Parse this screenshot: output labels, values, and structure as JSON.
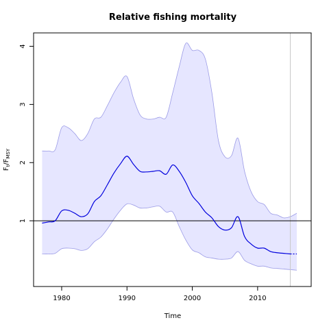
{
  "chart_data": {
    "type": "line",
    "title": "Relative fishing mortality",
    "xlabel": "Time",
    "ylabel": {
      "main": "F",
      "sub1": "t",
      "sep": "/F",
      "sub2": "MSY"
    },
    "xlim": [
      1975.7,
      2018.2
    ],
    "ylim": [
      -0.13,
      4.23
    ],
    "x_ticks": [
      1980,
      1990,
      2000,
      2010
    ],
    "y_ticks": [
      1,
      2,
      3,
      4
    ],
    "reference_line": {
      "y": 1,
      "color": "#000000"
    },
    "last_data_year": 2015,
    "colors": {
      "line": "#0000dd",
      "band_fill": "#e6e6ff",
      "band_stroke": "#9a9ae6",
      "vline": "#c8c8c8"
    },
    "series": [
      {
        "role": "estimate",
        "x": [
          1977,
          1978,
          1979,
          1980,
          1981,
          1982,
          1983,
          1984,
          1985,
          1986,
          1987,
          1988,
          1989,
          1990,
          1991,
          1992,
          1993,
          1994,
          1995,
          1996,
          1997,
          1998,
          1999,
          2000,
          2001,
          2002,
          2003,
          2004,
          2005,
          2006,
          2007,
          2008,
          2009,
          2010,
          2011,
          2012,
          2013,
          2014,
          2015
        ],
        "y": [
          0.96,
          0.98,
          1.0,
          1.17,
          1.18,
          1.13,
          1.07,
          1.12,
          1.33,
          1.43,
          1.62,
          1.82,
          1.98,
          2.11,
          1.97,
          1.85,
          1.84,
          1.85,
          1.86,
          1.8,
          1.96,
          1.85,
          1.66,
          1.43,
          1.3,
          1.15,
          1.05,
          0.9,
          0.84,
          0.88,
          1.07,
          0.73,
          0.6,
          0.53,
          0.53,
          0.47,
          0.45,
          0.44,
          0.43
        ]
      },
      {
        "role": "projection",
        "x": [
          2015,
          2016
        ],
        "y": [
          0.43,
          0.43
        ]
      },
      {
        "role": "upper",
        "x": [
          1977,
          1978,
          1979,
          1980,
          1981,
          1982,
          1983,
          1984,
          1985,
          1986,
          1987,
          1988,
          1989,
          1990,
          1991,
          1992,
          1993,
          1994,
          1995,
          1996,
          1997,
          1998,
          1999,
          2000,
          2001,
          2002,
          2003,
          2004,
          2005,
          2006,
          2007,
          2008,
          2009,
          2010,
          2011,
          2012,
          2013,
          2014,
          2015,
          2016
        ],
        "y": [
          2.2,
          2.2,
          2.22,
          2.6,
          2.6,
          2.5,
          2.38,
          2.5,
          2.75,
          2.78,
          2.98,
          3.2,
          3.38,
          3.48,
          3.1,
          2.82,
          2.75,
          2.75,
          2.78,
          2.78,
          3.2,
          3.65,
          4.05,
          3.93,
          3.93,
          3.78,
          3.2,
          2.38,
          2.1,
          2.12,
          2.42,
          1.85,
          1.5,
          1.33,
          1.28,
          1.13,
          1.1,
          1.05,
          1.07,
          1.13
        ]
      },
      {
        "role": "lower",
        "x": [
          1977,
          1978,
          1979,
          1980,
          1981,
          1982,
          1983,
          1984,
          1985,
          1986,
          1987,
          1988,
          1989,
          1990,
          1991,
          1992,
          1993,
          1994,
          1995,
          1996,
          1997,
          1998,
          1999,
          2000,
          2001,
          2002,
          2003,
          2004,
          2005,
          2006,
          2007,
          2008,
          2009,
          2010,
          2011,
          2012,
          2013,
          2014,
          2015,
          2016
        ],
        "y": [
          0.43,
          0.43,
          0.44,
          0.52,
          0.53,
          0.52,
          0.49,
          0.52,
          0.64,
          0.72,
          0.86,
          1.03,
          1.18,
          1.29,
          1.27,
          1.22,
          1.22,
          1.24,
          1.25,
          1.15,
          1.15,
          0.9,
          0.67,
          0.5,
          0.45,
          0.38,
          0.36,
          0.34,
          0.34,
          0.36,
          0.47,
          0.32,
          0.26,
          0.22,
          0.22,
          0.19,
          0.18,
          0.17,
          0.16,
          0.15
        ]
      }
    ]
  }
}
